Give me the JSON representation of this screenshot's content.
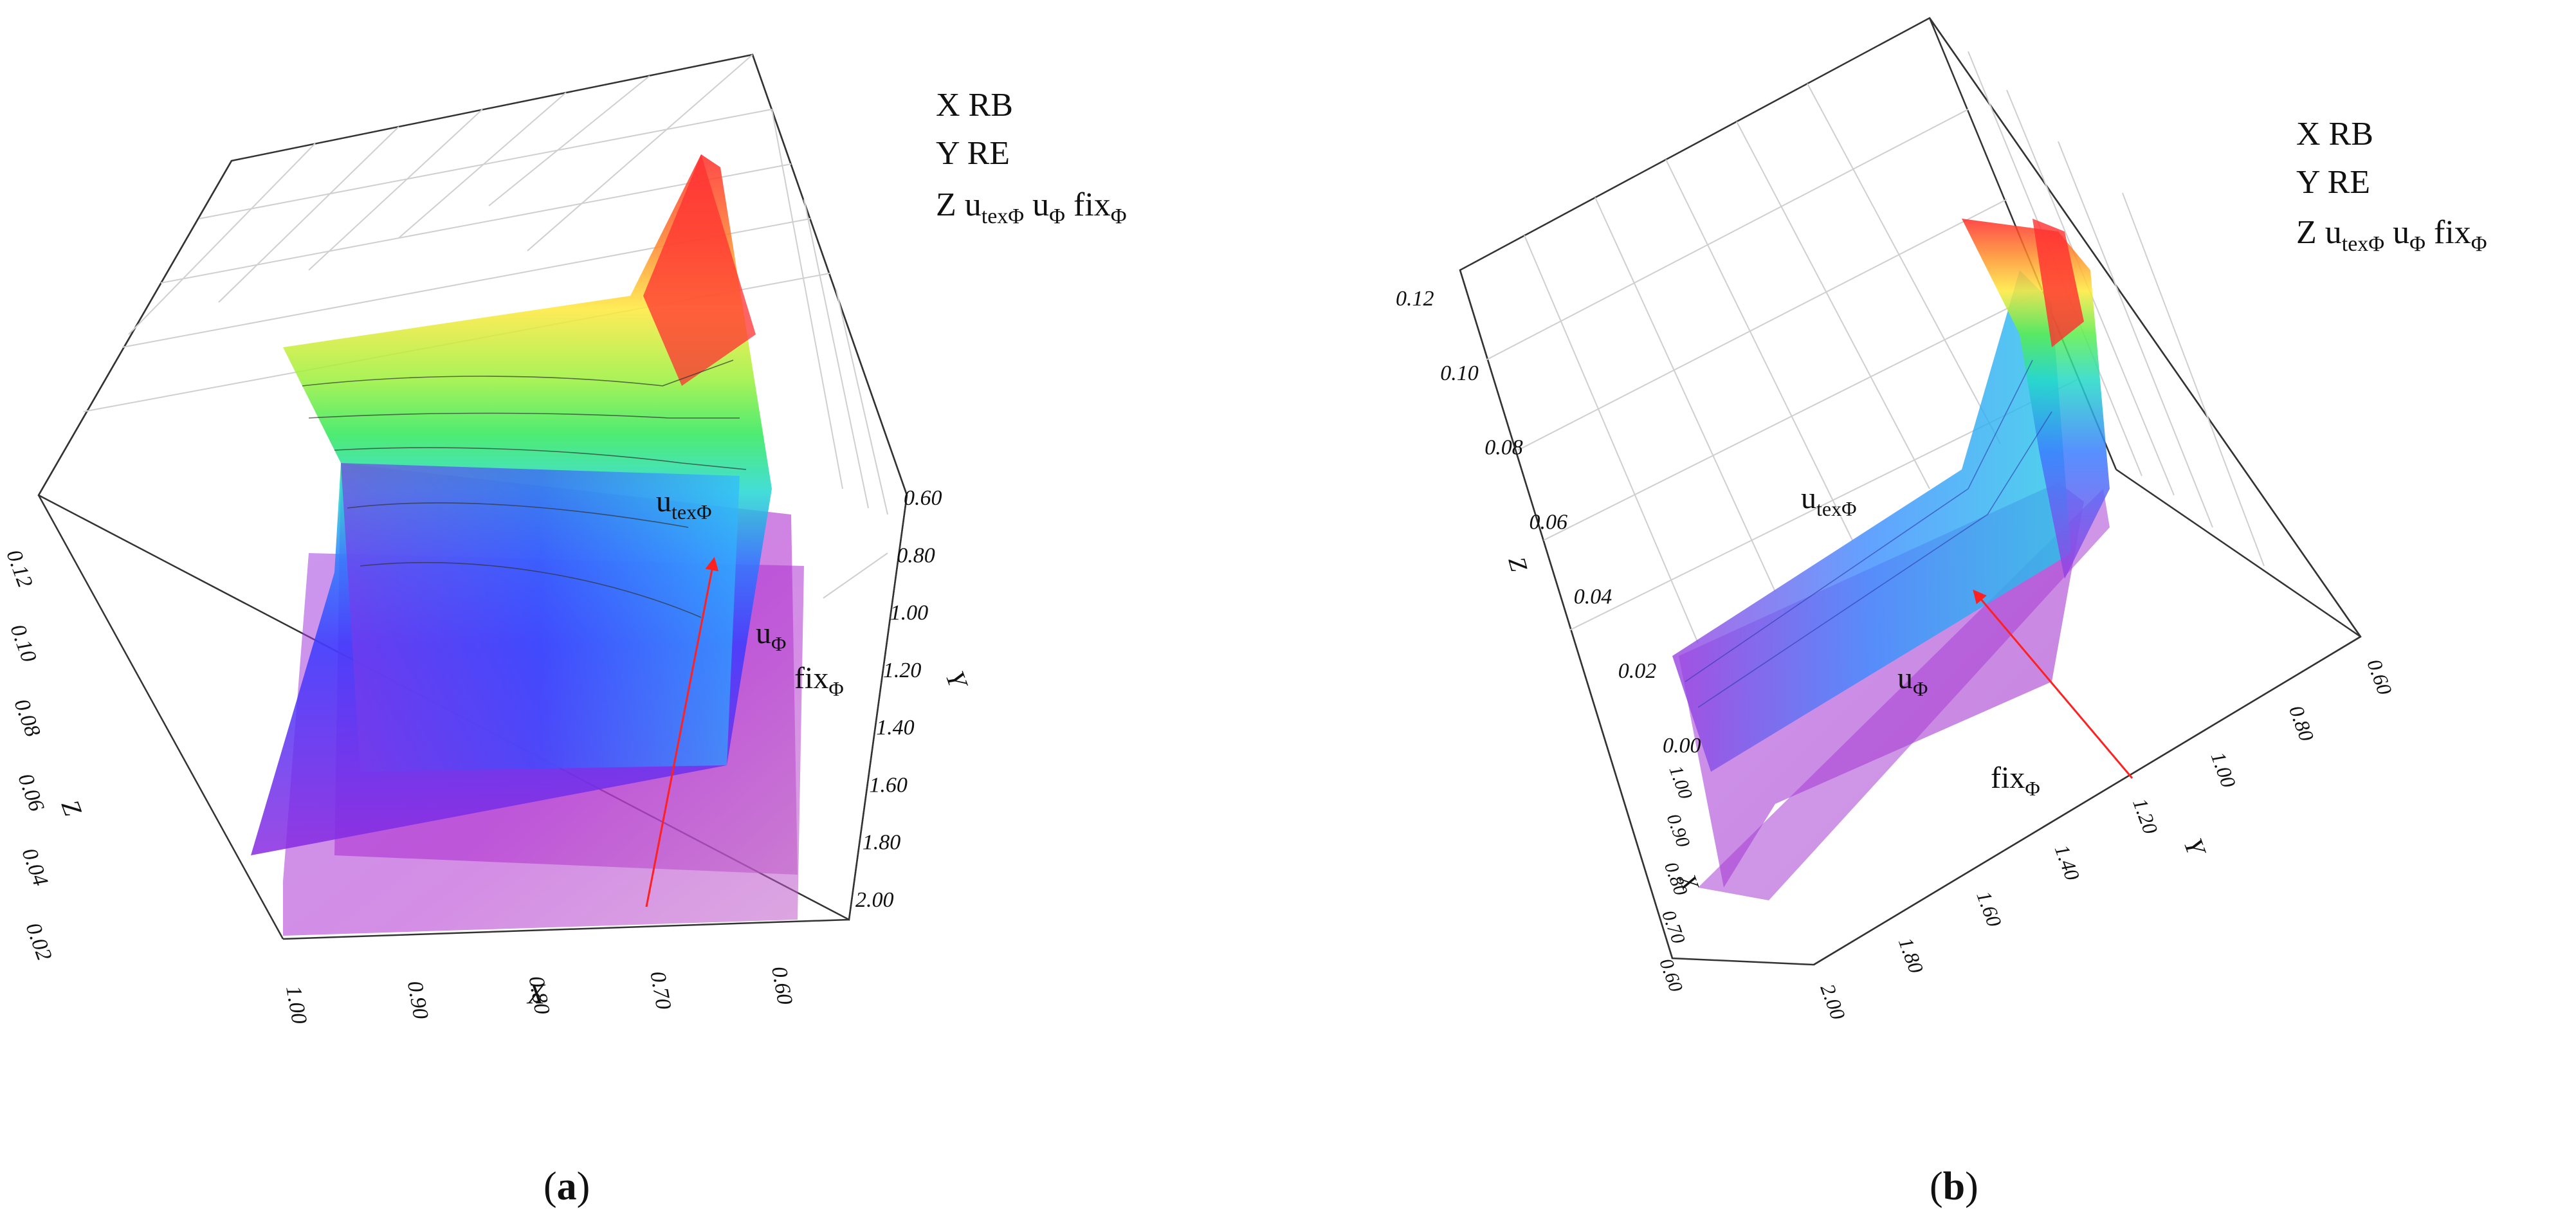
{
  "chart_data": [
    {
      "panel": "(a)",
      "panel_letter": "a",
      "type": "surface3d",
      "title": "",
      "legend": {
        "x_line": "X RB",
        "y_line": "Y RE",
        "z_line": {
          "prefix": "Z u",
          "sub1": "texΦ",
          "mid1": " u",
          "sub2": "Φ",
          "mid2": " fix",
          "sub3": "Φ"
        }
      },
      "x_axis": {
        "label": "X",
        "ticks": [
          "0.60",
          "0.70",
          "0.80",
          "0.90",
          "1.00"
        ],
        "range": [
          0.6,
          1.0
        ]
      },
      "y_axis": {
        "label": "Y",
        "ticks": [
          "0.60",
          "0.80",
          "1.00",
          "1.20",
          "1.40",
          "1.60",
          "1.80",
          "2.00"
        ],
        "range": [
          0.6,
          2.0
        ]
      },
      "z_axis": {
        "label": "Z",
        "ticks": [
          "0.02",
          "0.04",
          "0.06",
          "0.08",
          "0.10",
          "0.12"
        ],
        "range": [
          0.0,
          0.12
        ]
      },
      "surface_labels": [
        {
          "base": "u",
          "sub": "texΦ"
        },
        {
          "base": "u",
          "sub": "Φ"
        },
        {
          "base": "fix",
          "sub": "Φ"
        }
      ],
      "series": [
        {
          "id": "utexPhi",
          "z_min": 0.02,
          "z_max": 0.12,
          "colormap": "rainbow"
        },
        {
          "id": "uPhi",
          "z_min": 0.0,
          "z_max": 0.03,
          "colormap": "violet"
        },
        {
          "id": "fixPhi",
          "z_min": 0.0,
          "z_max": 0.02,
          "colormap": "violet"
        }
      ]
    },
    {
      "panel": "(b)",
      "panel_letter": "b",
      "type": "surface3d",
      "title": "",
      "legend": {
        "x_line": "X RB",
        "y_line": "Y RE",
        "z_line": {
          "prefix": "Z u",
          "sub1": "texΦ",
          "mid1": " u",
          "sub2": "Φ",
          "mid2": " fix",
          "sub3": "Φ"
        }
      },
      "x_axis": {
        "label": "X",
        "ticks": [
          "0.60",
          "0.70",
          "0.80",
          "0.90",
          "1.00"
        ],
        "range": [
          0.6,
          1.0
        ]
      },
      "y_axis": {
        "label": "Y",
        "ticks": [
          "0.60",
          "0.80",
          "1.00",
          "1.20",
          "1.40",
          "1.60",
          "1.80",
          "2.00"
        ],
        "range": [
          0.6,
          2.0
        ]
      },
      "z_axis": {
        "label": "Z",
        "ticks": [
          "0.00",
          "0.02",
          "0.04",
          "0.06",
          "0.08",
          "0.10",
          "0.12"
        ],
        "range": [
          0.0,
          0.12
        ]
      },
      "surface_labels": [
        {
          "base": "u",
          "sub": "texΦ"
        },
        {
          "base": "u",
          "sub": "Φ"
        },
        {
          "base": "fix",
          "sub": "Φ"
        }
      ],
      "series": [
        {
          "id": "utexPhi",
          "z_min": 0.0,
          "z_max": 0.12,
          "colormap": "rainbow"
        },
        {
          "id": "uPhi",
          "z_min": 0.0,
          "z_max": 0.04,
          "colormap": "violet"
        },
        {
          "id": "fixPhi",
          "z_min": 0.0,
          "z_max": 0.02,
          "colormap": "violet"
        }
      ]
    }
  ],
  "colors": {
    "arrow": "#ff2020",
    "grid": "#c8c8c8",
    "box": "#333333"
  }
}
